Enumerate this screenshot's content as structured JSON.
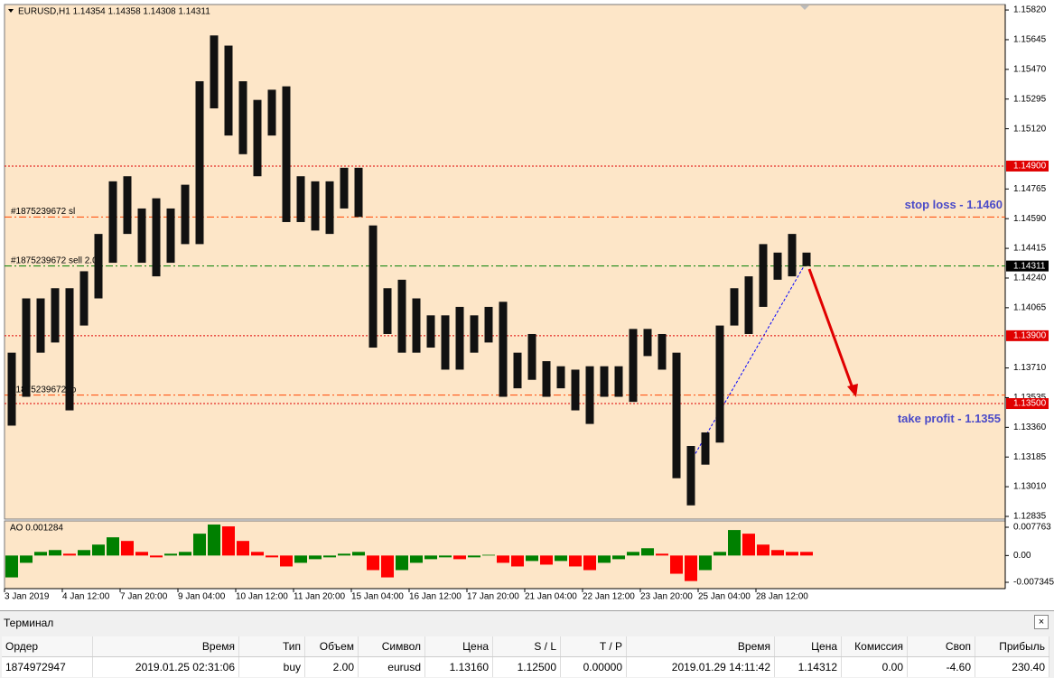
{
  "chart_data": [
    {
      "type": "range-bar",
      "title": "EURUSD,H1  1.14354 1.14358 1.14308 1.14311",
      "color": "#111111",
      "categories": [
        "3 Jan 2019",
        null,
        null,
        null,
        "4 Jan 12:00",
        null,
        null,
        null,
        "7 Jan 20:00",
        null,
        null,
        null,
        "9 Jan 04:00",
        null,
        null,
        null,
        "10 Jan 12:00",
        null,
        null,
        null,
        "11 Jan 20:00",
        null,
        null,
        null,
        "15 Jan 04:00",
        null,
        null,
        null,
        "16 Jan 12:00",
        null,
        null,
        null,
        "17 Jan 20:00",
        null,
        null,
        null,
        "21 Jan 04:00",
        null,
        null,
        null,
        "22 Jan 12:00",
        null,
        null,
        null,
        "23 Jan 20:00",
        null,
        null,
        null,
        "25 Jan 04:00",
        null,
        null,
        null,
        "28 Jan 12:00",
        null,
        null,
        null
      ],
      "high": [
        1.138,
        1.1412,
        1.1412,
        1.1418,
        1.1418,
        1.1428,
        1.145,
        1.1481,
        1.1484,
        1.1465,
        1.1471,
        1.1465,
        1.1479,
        1.154,
        1.1567,
        1.1561,
        1.154,
        1.1529,
        1.1535,
        1.1537,
        1.1484,
        1.1481,
        1.1481,
        1.1489,
        1.1489,
        1.1455,
        1.1418,
        1.1423,
        1.1412,
        1.1402,
        1.1402,
        1.1407,
        1.1402,
        1.1407,
        1.141,
        1.138,
        1.1391,
        1.1375,
        1.1372,
        1.137,
        1.1372,
        1.1372,
        1.1372,
        1.1394,
        1.1394,
        1.1391,
        1.138,
        1.1325,
        1.1333,
        1.1396,
        1.1418,
        1.1425,
        1.1444,
        1.1439,
        1.145,
        1.1439
      ],
      "low": [
        1.1337,
        1.1354,
        1.138,
        1.1386,
        1.1346,
        1.1396,
        1.1412,
        1.1433,
        1.145,
        1.1433,
        1.1425,
        1.1433,
        1.1444,
        1.1444,
        1.1524,
        1.1508,
        1.1497,
        1.1484,
        1.1508,
        1.1457,
        1.1457,
        1.1452,
        1.145,
        1.1465,
        1.146,
        1.1383,
        1.1391,
        1.138,
        1.138,
        1.1383,
        1.137,
        1.137,
        1.138,
        1.1386,
        1.1354,
        1.1359,
        1.1364,
        1.1354,
        1.1359,
        1.1346,
        1.1338,
        1.1354,
        1.1354,
        1.1351,
        1.1378,
        1.137,
        1.1306,
        1.129,
        1.1314,
        1.1327,
        1.1396,
        1.1391,
        1.1407,
        1.1423,
        1.1425,
        1.1431
      ],
      "ylim": [
        1.12819,
        1.15847
      ],
      "yticks": [
        {
          "value": 1.1582,
          "label": "1.15820"
        },
        {
          "value": 1.15645,
          "label": "1.15645"
        },
        {
          "value": 1.1547,
          "label": "1.15470"
        },
        {
          "value": 1.15295,
          "label": "1.15295"
        },
        {
          "value": 1.1512,
          "label": "1.15120"
        },
        {
          "value": 1.14765,
          "label": "1.14765"
        },
        {
          "value": 1.1459,
          "label": "1.14590"
        },
        {
          "value": 1.14415,
          "label": "1.14415"
        },
        {
          "value": 1.1424,
          "label": "1.14240"
        },
        {
          "value": 1.14065,
          "label": "1.14065"
        },
        {
          "value": 1.1371,
          "label": "1.13710"
        },
        {
          "value": 1.13535,
          "label": "1.13535"
        },
        {
          "value": 1.1336,
          "label": "1.13360"
        },
        {
          "value": 1.13185,
          "label": "1.13185"
        },
        {
          "value": 1.1301,
          "label": "1.13010"
        },
        {
          "value": 1.12835,
          "label": "1.12835"
        }
      ],
      "levels": [
        {
          "value": 1.149,
          "label": "1.14900",
          "color": "#e00000"
        },
        {
          "value": 1.14311,
          "label": "1.14311",
          "color": "#000000"
        },
        {
          "value": 1.139,
          "label": "1.13900",
          "color": "#e00000"
        },
        {
          "value": 1.135,
          "label": "1.13500",
          "color": "#e00000"
        }
      ],
      "orders": [
        {
          "value": 1.146,
          "label": "#1875239672 sl",
          "color": "#ff4500"
        },
        {
          "value": 1.14311,
          "label": "#1875239672 sell 2.00",
          "color": "#008000"
        },
        {
          "value": 1.1355,
          "label": "#1875239672 tp",
          "color": "#ff4500"
        }
      ],
      "annotations": [
        "stop loss - 1.1460",
        "take profit - 1.1355"
      ]
    },
    {
      "type": "bar",
      "title": "AO 0.001284",
      "up_color": "#008000",
      "down_color": "#ff0000",
      "values": [
        -0.006,
        -0.002,
        0.001,
        0.0015,
        0.0005,
        0.0015,
        0.003,
        0.005,
        0.004,
        0.001,
        -0.0005,
        0.0005,
        0.001,
        0.006,
        0.0085,
        0.008,
        0.004,
        0.001,
        -0.0005,
        -0.003,
        -0.002,
        -0.001,
        -0.0005,
        0.0005,
        0.001,
        -0.004,
        -0.006,
        -0.004,
        -0.002,
        -0.001,
        -0.0005,
        -0.001,
        -0.0005,
        0.0002,
        -0.002,
        -0.003,
        -0.0015,
        -0.0025,
        -0.0015,
        -0.003,
        -0.004,
        -0.002,
        -0.001,
        0.001,
        0.002,
        0.0005,
        -0.005,
        -0.007,
        -0.004,
        0.001,
        0.007,
        0.006,
        0.003,
        0.0015,
        0.001,
        0.001
      ],
      "ylim": [
        -0.00908,
        0.00925
      ],
      "yticks": [
        0.007763,
        {
          "value": 0,
          "label": "0.00"
        },
        -0.007345
      ]
    }
  ],
  "terminal": {
    "title": "Терминал",
    "columns": [
      "Ордер",
      "Время",
      "Тип",
      "Объем",
      "Символ",
      "Цена",
      "S / L",
      "T / P",
      "Время",
      "Цена",
      "Комиссия",
      "Своп",
      "Прибыль"
    ],
    "rows": [
      [
        "1874972947",
        "2019.01.25 02:31:06",
        "buy",
        "2.00",
        "eurusd",
        "1.13160",
        "1.12500",
        "0.00000",
        "2019.01.29 14:11:42",
        "1.14312",
        "0.00",
        "-4.60",
        "230.40"
      ]
    ]
  }
}
